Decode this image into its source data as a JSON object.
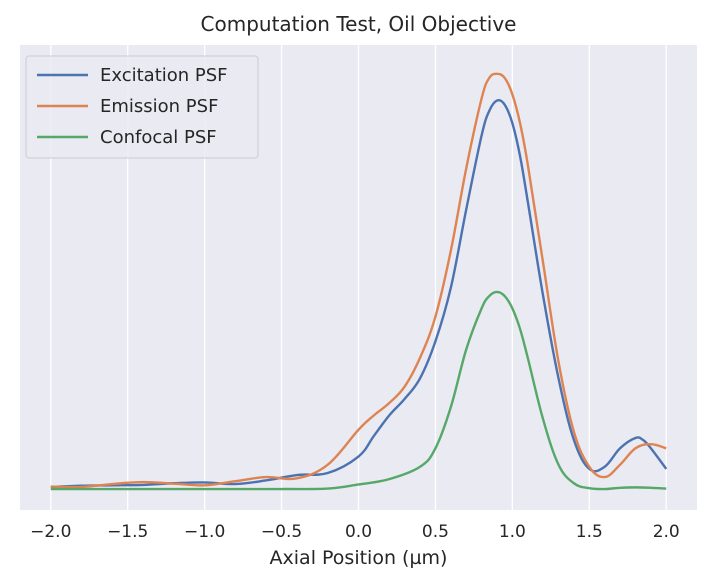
{
  "chart_data": {
    "type": "line",
    "title": "Computation Test, Oil Objective",
    "xlabel": "Axial Position (µm)",
    "ylabel": "",
    "xlim": [
      -2.2,
      2.2
    ],
    "ylim": [
      -0.05,
      1.08
    ],
    "xticks": [
      -2.0,
      -1.5,
      -1.0,
      -0.5,
      0.0,
      0.5,
      1.0,
      1.5,
      2.0
    ],
    "xtick_labels": [
      "−2.0",
      "−1.5",
      "−1.0",
      "−0.5",
      "0.0",
      "0.5",
      "1.0",
      "1.5",
      "2.0"
    ],
    "grid": "vertical",
    "legend_position": "top-left",
    "colors": {
      "background": "#EAEAF2",
      "grid": "#FFFFFF",
      "excitation": "#4C72B0",
      "emission": "#DD8452",
      "confocal": "#55A868"
    },
    "series": [
      {
        "name": "Excitation PSF",
        "color": "#4C72B0",
        "x": [
          -2.0,
          -1.8,
          -1.6,
          -1.4,
          -1.2,
          -1.0,
          -0.8,
          -0.6,
          -0.4,
          -0.2,
          0.0,
          0.1,
          0.2,
          0.3,
          0.4,
          0.5,
          0.6,
          0.7,
          0.8,
          0.85,
          0.9,
          0.95,
          1.0,
          1.05,
          1.1,
          1.2,
          1.3,
          1.4,
          1.5,
          1.6,
          1.7,
          1.8,
          1.85,
          1.9,
          2.0
        ],
        "y": [
          0.006,
          0.009,
          0.01,
          0.011,
          0.015,
          0.017,
          0.013,
          0.022,
          0.035,
          0.04,
          0.08,
          0.13,
          0.18,
          0.22,
          0.27,
          0.36,
          0.49,
          0.68,
          0.86,
          0.92,
          0.945,
          0.935,
          0.89,
          0.81,
          0.7,
          0.47,
          0.27,
          0.12,
          0.05,
          0.055,
          0.1,
          0.125,
          0.12,
          0.1,
          0.05
        ]
      },
      {
        "name": "Emission PSF",
        "color": "#DD8452",
        "x": [
          -2.0,
          -1.8,
          -1.6,
          -1.4,
          -1.2,
          -1.0,
          -0.8,
          -0.6,
          -0.4,
          -0.2,
          0.0,
          0.1,
          0.2,
          0.3,
          0.4,
          0.5,
          0.6,
          0.7,
          0.8,
          0.85,
          0.9,
          0.95,
          1.0,
          1.05,
          1.1,
          1.2,
          1.3,
          1.4,
          1.5,
          1.6,
          1.7,
          1.8,
          1.9,
          2.0
        ],
        "y": [
          0.007,
          0.006,
          0.013,
          0.018,
          0.014,
          0.01,
          0.02,
          0.03,
          0.027,
          0.06,
          0.145,
          0.18,
          0.21,
          0.25,
          0.32,
          0.42,
          0.58,
          0.78,
          0.95,
          1.0,
          1.01,
          1.0,
          0.96,
          0.89,
          0.79,
          0.55,
          0.31,
          0.14,
          0.055,
          0.03,
          0.06,
          0.1,
          0.11,
          0.1
        ]
      },
      {
        "name": "Confocal PSF",
        "color": "#55A868",
        "x": [
          -2.0,
          -1.5,
          -1.0,
          -0.5,
          -0.2,
          0.0,
          0.2,
          0.4,
          0.5,
          0.6,
          0.7,
          0.8,
          0.85,
          0.9,
          0.95,
          1.0,
          1.05,
          1.1,
          1.2,
          1.3,
          1.4,
          1.5,
          1.6,
          1.7,
          1.8,
          1.9,
          2.0
        ],
        "y": [
          0.001,
          0.001,
          0.001,
          0.001,
          0.002,
          0.012,
          0.025,
          0.055,
          0.1,
          0.2,
          0.34,
          0.44,
          0.47,
          0.48,
          0.47,
          0.44,
          0.39,
          0.32,
          0.17,
          0.06,
          0.015,
          0.003,
          0.001,
          0.004,
          0.005,
          0.004,
          0.002
        ]
      }
    ]
  }
}
